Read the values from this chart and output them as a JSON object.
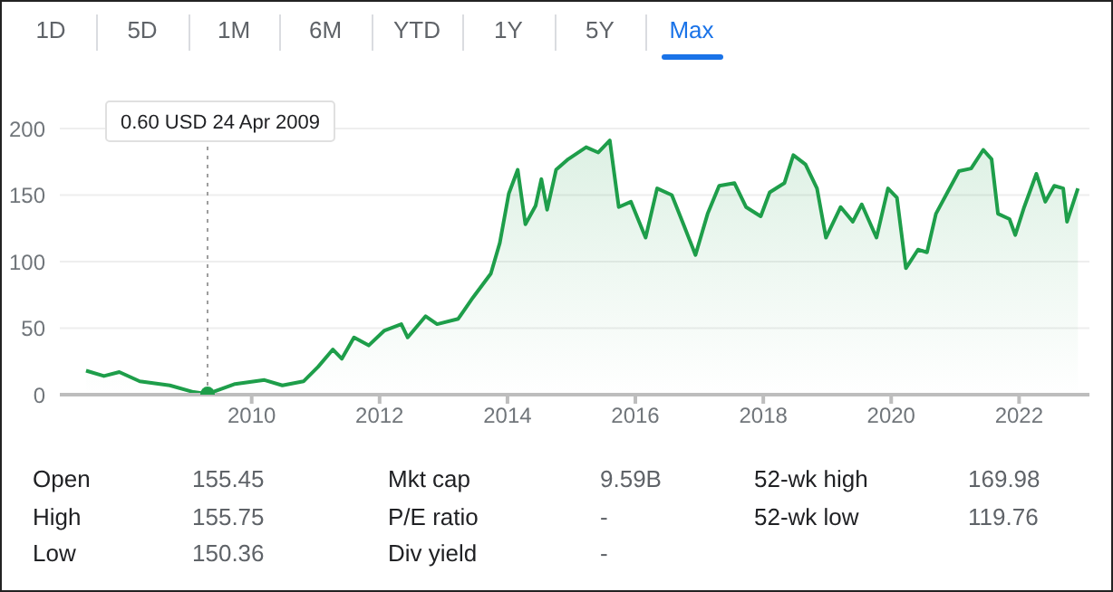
{
  "chart_data": {
    "type": "area",
    "series": [
      {
        "color": "#1e9e4a",
        "marker": "none",
        "x": [
          2007.41,
          2007.69,
          2007.93,
          2008.25,
          2008.72,
          2009.09,
          2009.31,
          2009.74,
          2010.2,
          2010.48,
          2010.81,
          2011.04,
          2011.27,
          2011.41,
          2011.6,
          2011.83,
          2012.07,
          2012.34,
          2012.44,
          2012.72,
          2012.9,
          2013.23,
          2013.46,
          2013.74,
          2013.88,
          2014.02,
          2014.16,
          2014.28,
          2014.44,
          2014.53,
          2014.62,
          2014.76,
          2014.95,
          2015.23,
          2015.42,
          2015.6,
          2015.74,
          2015.93,
          2016.16,
          2016.34,
          2016.57,
          2016.76,
          2016.94,
          2017.13,
          2017.31,
          2017.55,
          2017.73,
          2017.96,
          2018.1,
          2018.33,
          2018.47,
          2018.66,
          2018.84,
          2018.98,
          2019.21,
          2019.4,
          2019.54,
          2019.77,
          2019.95,
          2020.09,
          2020.23,
          2020.42,
          2020.56,
          2020.7,
          2020.88,
          2021.06,
          2021.25,
          2021.44,
          2021.57,
          2021.67,
          2021.85,
          2021.94,
          2022.08,
          2022.27,
          2022.41,
          2022.55,
          2022.69,
          2022.75,
          2022.92
        ],
        "values": [
          18,
          14,
          17,
          10,
          7,
          2,
          0.6,
          8,
          11,
          7,
          10,
          21,
          34,
          27,
          43,
          37,
          48,
          53,
          43,
          59,
          53,
          57,
          73,
          91,
          114,
          151,
          169,
          128,
          142,
          162,
          139,
          169,
          177,
          186,
          182,
          191,
          141,
          145,
          118,
          155,
          150,
          127,
          105,
          136,
          157,
          159,
          141,
          134,
          152,
          159,
          180,
          173,
          155,
          118,
          141,
          130,
          143,
          118,
          155,
          148,
          95,
          109,
          107,
          136,
          152,
          168,
          170,
          184,
          177,
          136,
          132,
          120,
          141,
          166,
          145,
          157,
          155,
          130,
          155
        ]
      },
      {
        "type": "scatter",
        "color": "#1e9e4a",
        "marker": "circle",
        "x": [
          2009.31
        ],
        "values": [
          0.6
        ]
      }
    ],
    "xlim": [
      2007.0,
      2023.1
    ],
    "xticks": [
      2010,
      2012,
      2014,
      2016,
      2018,
      2020,
      2022
    ],
    "ylim": [
      0,
      200
    ],
    "yticks": [
      0,
      50,
      100,
      150,
      200
    ],
    "grid": "y",
    "legend": false,
    "line_style": "solid",
    "ref_lines": [
      {
        "axis": "x",
        "value": 2009.31,
        "label": "0.60 USD  24 Apr 2009",
        "color": "#9e9e9e",
        "line_style": "dotted"
      }
    ],
    "annotations": [
      "1D",
      "5D",
      "1M",
      "6M",
      "YTD",
      "1Y",
      "5Y",
      "Max",
      "Open",
      "155.45",
      "Mkt cap",
      "9.59B",
      "52-wk high",
      "169.98",
      "High",
      "155.75",
      "P/E ratio",
      "-",
      "52-wk low",
      "119.76",
      "Low",
      "150.36",
      "Div yield",
      "-"
    ]
  }
}
